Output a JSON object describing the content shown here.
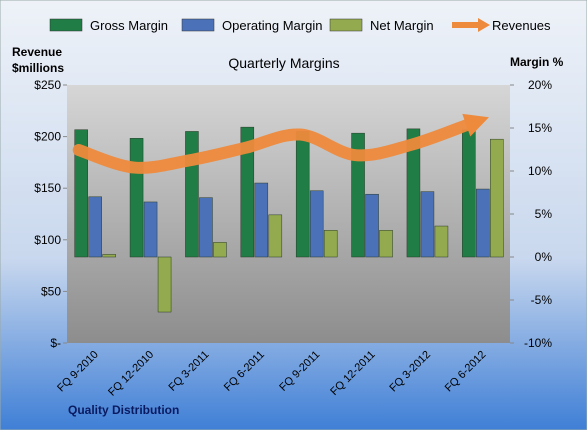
{
  "chart_data": {
    "type": "bar",
    "title": "Quarterly Margins",
    "ylabel": [
      "Revenue",
      "$millions"
    ],
    "y2label": "Margin %",
    "source": "Quality Distribution",
    "categories": [
      "FQ 9-2010",
      "FQ 12-2010",
      "FQ 3-2011",
      "FQ 6-2011",
      "FQ 9-2011",
      "FQ 12-2011",
      "FQ 3-2012",
      "FQ 6-2012"
    ],
    "series": [
      {
        "name": "Gross Margin",
        "color": "#1f7d45",
        "axis": "y2",
        "values": [
          14.8,
          13.8,
          14.6,
          15.1,
          14.6,
          14.4,
          14.9,
          14.8
        ]
      },
      {
        "name": "Operating Margin",
        "color": "#4b72b8",
        "axis": "y2",
        "values": [
          7.0,
          6.4,
          6.9,
          8.6,
          7.7,
          7.3,
          7.6,
          7.9
        ]
      },
      {
        "name": "Net Margin",
        "color": "#93ab4e",
        "axis": "y2",
        "values": [
          0.3,
          -6.4,
          1.7,
          4.9,
          3.1,
          3.1,
          3.6,
          13.7
        ]
      },
      {
        "name": "Revenues",
        "color": "#ee8a3c",
        "type": "line",
        "values": [
          187,
          170,
          177,
          189,
          202,
          182,
          192,
          211
        ]
      }
    ],
    "ylim": [
      0,
      250
    ],
    "yticks": [
      {
        "value": 0,
        "label": "$-"
      },
      {
        "value": 50,
        "label": "$50"
      },
      {
        "value": 100,
        "label": "$100"
      },
      {
        "value": 150,
        "label": "$150"
      },
      {
        "value": 200,
        "label": "$200"
      },
      {
        "value": 250,
        "label": "$250"
      }
    ],
    "y2lim": [
      -10,
      20
    ],
    "y2ticks": [
      {
        "value": -10,
        "label": "-10%"
      },
      {
        "value": -5,
        "label": "-5%"
      },
      {
        "value": 0,
        "label": "0%"
      },
      {
        "value": 5,
        "label": "5%"
      },
      {
        "value": 10,
        "label": "10%"
      },
      {
        "value": 15,
        "label": "15%"
      },
      {
        "value": 20,
        "label": "20%"
      }
    ]
  }
}
